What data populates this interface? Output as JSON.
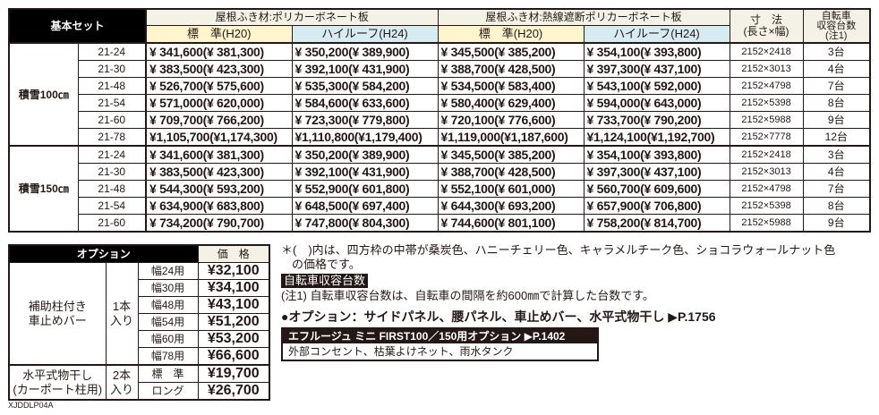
{
  "main_table": {
    "corner_label": "基本セット",
    "groups": [
      {
        "label": "屋根ふき材:ポリカーボネート板",
        "sub": [
          "標　準(H20)",
          "ハイルーフ(H24)"
        ]
      },
      {
        "label": "屋根ふき材:熱線遮断ポリカーボネート板",
        "sub": [
          "標　準(H20)",
          "ハイルーフ(H24)"
        ]
      }
    ],
    "dim_header": "寸　法\n(長さ×幅)",
    "bike_header": "自転車\n収容台数\n(注1)",
    "sections": [
      {
        "snow": "積雪100㎝",
        "rows": [
          {
            "model": "21-24",
            "p": [
              "341,600",
              "381,300",
              "350,200",
              "389,900",
              "345,500",
              "385,200",
              "354,100",
              "393,800"
            ],
            "dim": "2152×2418",
            "bikes": "3台"
          },
          {
            "model": "21-30",
            "p": [
              "383,500",
              "423,300",
              "392,100",
              "431,900",
              "388,700",
              "428,500",
              "397,300",
              "437,100"
            ],
            "dim": "2152×3013",
            "bikes": "4台"
          },
          {
            "model": "21-48",
            "p": [
              "526,700",
              "575,600",
              "535,300",
              "584,200",
              "534,500",
              "583,400",
              "543,100",
              "592,000"
            ],
            "dim": "2152×4798",
            "bikes": "7台"
          },
          {
            "model": "21-54",
            "p": [
              "571,000",
              "620,000",
              "584,600",
              "633,600",
              "580,400",
              "629,400",
              "594,000",
              "643,000"
            ],
            "dim": "2152×5398",
            "bikes": "8台"
          },
          {
            "model": "21-60",
            "p": [
              "709,700",
              "766,200",
              "723,300",
              "779,800",
              "720,100",
              "776,600",
              "733,700",
              "790,200"
            ],
            "dim": "2152×5988",
            "bikes": "9台"
          },
          {
            "model": "21-78",
            "p": [
              "1,105,700",
              "1,174,300",
              "1,110,800",
              "1,179,400",
              "1,119,000",
              "1,187,600",
              "1,124,100",
              "1,192,700"
            ],
            "dim": "2152×7778",
            "bikes": "12台"
          }
        ]
      },
      {
        "snow": "積雪150㎝",
        "rows": [
          {
            "model": "21-24",
            "p": [
              "341,600",
              "381,300",
              "350,200",
              "389,900",
              "345,500",
              "385,200",
              "354,100",
              "393,800"
            ],
            "dim": "2152×2418",
            "bikes": "3台"
          },
          {
            "model": "21-30",
            "p": [
              "383,500",
              "423,300",
              "392,100",
              "431,900",
              "388,700",
              "428,500",
              "397,300",
              "437,100"
            ],
            "dim": "2152×3013",
            "bikes": "4台"
          },
          {
            "model": "21-48",
            "p": [
              "544,300",
              "593,200",
              "552,900",
              "601,800",
              "552,100",
              "601,000",
              "560,700",
              "609,600"
            ],
            "dim": "2152×4798",
            "bikes": "7台"
          },
          {
            "model": "21-54",
            "p": [
              "634,900",
              "683,800",
              "648,500",
              "697,400",
              "644,300",
              "693,200",
              "657,900",
              "706,800"
            ],
            "dim": "2152×5398",
            "bikes": "8台"
          },
          {
            "model": "21-60",
            "p": [
              "734,200",
              "790,700",
              "747,800",
              "804,300",
              "744,600",
              "801,100",
              "758,200",
              "814,700"
            ],
            "dim": "2152×5988",
            "bikes": "9台"
          }
        ]
      }
    ]
  },
  "option_table": {
    "header": "オプション",
    "price_header": "価　格",
    "groups": [
      {
        "name": "補助柱付き\n車止めバー",
        "qty": "1本\n入り",
        "items": [
          {
            "w": "幅24用",
            "price": "¥32,100"
          },
          {
            "w": "幅30用",
            "price": "¥34,100"
          },
          {
            "w": "幅48用",
            "price": "¥43,100"
          },
          {
            "w": "幅54用",
            "price": "¥51,200"
          },
          {
            "w": "幅60用",
            "price": "¥53,200"
          },
          {
            "w": "幅78用",
            "price": "¥66,600"
          }
        ]
      },
      {
        "name": "水平式物干し\n(カーポート柱用)",
        "qty": "2本\n入り",
        "items": [
          {
            "w": "標　準",
            "price": "¥19,700"
          },
          {
            "w": "ロング",
            "price": "¥26,700"
          }
        ]
      }
    ],
    "code": "XJDDLP04A"
  },
  "notes": {
    "note1_line1": "＊(　)内は、四方枠の中帯が桑炭色、ハニーチェリー色、キャラメルチーク色、ショコラウォールナット色",
    "note1_line2": "の価格です。",
    "bike_label": "自転車収容台数",
    "note2": "(注1) 自転車収容台数は、自転車の間隔を約600㎜で計算した台数です。",
    "options_line": "●オプション：サイドパネル、腰パネル、車止めバー、水平式物干し ▶P.1756",
    "box_title": "エフルージュ ミニ FIRST100／150用オプション ▶P.1402",
    "box_body": "外部コンセント、枯葉よけネット、雨水タンク"
  }
}
